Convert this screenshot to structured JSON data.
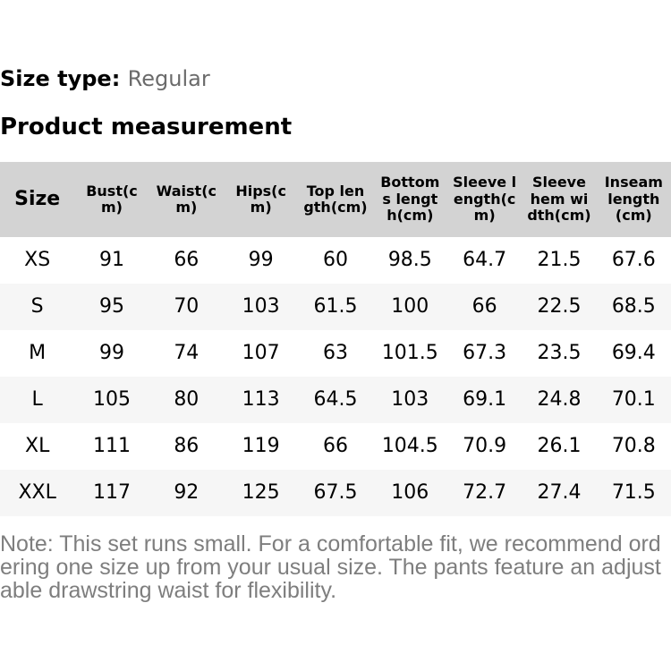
{
  "header": {
    "size_type_label": "Size type:",
    "size_type_value": "Regular",
    "section_title": "Product measurement"
  },
  "table": {
    "headers": [
      "Size",
      "Bust(cm)",
      "Waist(cm)",
      "Hips(cm)",
      "Top length(cm)",
      "Bottoms length(cm)",
      "Sleeve length(cm)",
      "Sleeve hem width(cm)",
      "Inseam length(cm)"
    ],
    "rows": [
      [
        "XS",
        "91",
        "66",
        "99",
        "60",
        "98.5",
        "64.7",
        "21.5",
        "67.6"
      ],
      [
        "S",
        "95",
        "70",
        "103",
        "61.5",
        "100",
        "66",
        "22.5",
        "68.5"
      ],
      [
        "M",
        "99",
        "74",
        "107",
        "63",
        "101.5",
        "67.3",
        "23.5",
        "69.4"
      ],
      [
        "L",
        "105",
        "80",
        "113",
        "64.5",
        "103",
        "69.1",
        "24.8",
        "70.1"
      ],
      [
        "XL",
        "111",
        "86",
        "119",
        "66",
        "104.5",
        "70.9",
        "26.1",
        "70.8"
      ],
      [
        "XXL",
        "117",
        "92",
        "125",
        "67.5",
        "106",
        "72.7",
        "27.4",
        "71.5"
      ]
    ]
  },
  "note_text": "Note: This set runs small. For a comfortable fit, we recommend ordering one size up from your usual size. The pants feature an adjustable drawstring waist for flexibility.",
  "colors": {
    "table_header_bg": "#d3d3d3",
    "row_stripe_bg": "#f6f6f6",
    "muted_value_text": "#6b6b6b",
    "note_text": "#7e7e7e",
    "primary_text": "#000000",
    "background": "#ffffff"
  }
}
